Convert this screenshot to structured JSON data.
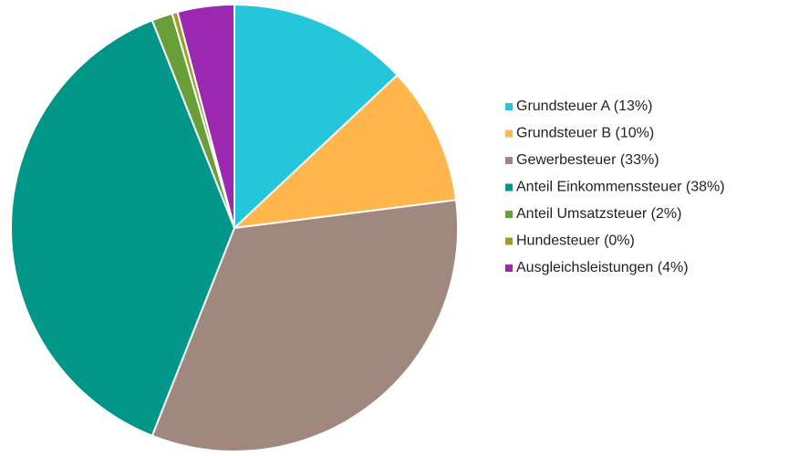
{
  "chart_data": {
    "type": "pie",
    "categories": [
      "Grundsteuer A (13%)",
      "Grundsteuer B (10%)",
      "Gewerbesteuer (33%)",
      "Anteil Einkommenssteuer (38%)",
      "Anteil Umsatzsteuer (2%)",
      "Hundesteuer (0%)",
      "Ausgleichsleistungen (4%)"
    ],
    "values": [
      13,
      10,
      33,
      38,
      1.5,
      0.4,
      4.1
    ],
    "colors": [
      "#26c6da",
      "#ffb74d",
      "#a1887f",
      "#009688",
      "#689f38",
      "#9e9d24",
      "#9c27b0"
    ],
    "legend": "right"
  }
}
